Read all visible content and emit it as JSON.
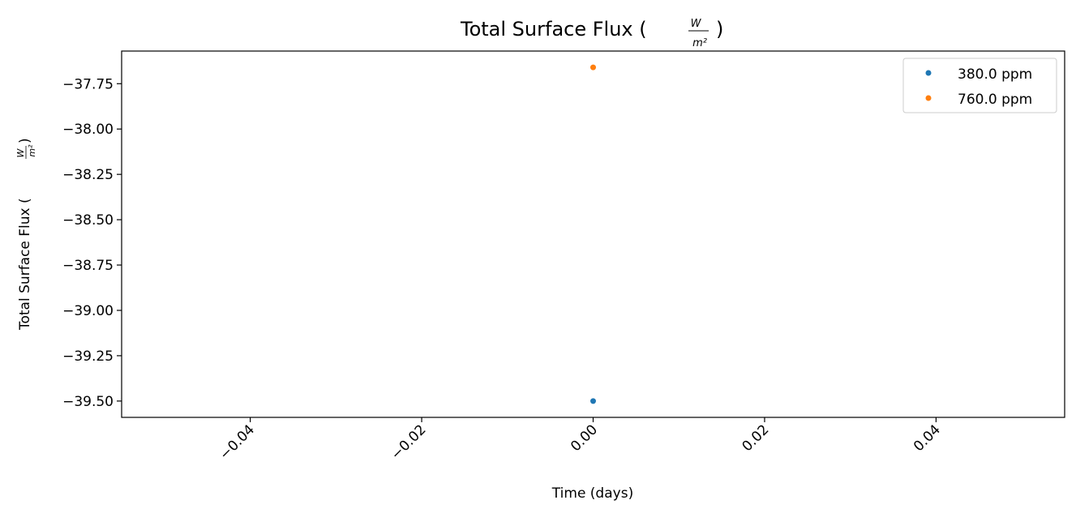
{
  "chart_data": {
    "type": "scatter",
    "title": "Total Surface Flux (",
    "title_frac_num": "W",
    "title_frac_den": "m²",
    "title_close": ")",
    "xlabel": "Time (days)",
    "ylabel": "Total Surface Flux (",
    "ylabel_frac_num": "W",
    "ylabel_frac_den": "m²",
    "ylabel_close": ")",
    "xlim": [
      -0.055,
      0.055
    ],
    "ylim": [
      -39.59,
      -37.57
    ],
    "xticks": [
      -0.04,
      -0.02,
      0.0,
      0.02,
      0.04
    ],
    "xtick_labels": [
      "−0.04",
      "−0.02",
      "0.00",
      "0.02",
      "0.04"
    ],
    "yticks": [
      -37.75,
      -38.0,
      -38.25,
      -38.5,
      -38.75,
      -39.0,
      -39.25,
      -39.5
    ],
    "ytick_labels": [
      "−37.75",
      "−38.00",
      "−38.25",
      "−38.50",
      "−38.75",
      "−39.00",
      "−39.25",
      "−39.50"
    ],
    "grid": false,
    "legend_position": "top-right",
    "series": [
      {
        "name": "380.0 ppm",
        "color": "#1f77b4",
        "x": [
          0.0
        ],
        "y": [
          -39.5
        ]
      },
      {
        "name": "760.0 ppm",
        "color": "#ff7f0e",
        "x": [
          0.0
        ],
        "y": [
          -37.66
        ]
      }
    ]
  }
}
